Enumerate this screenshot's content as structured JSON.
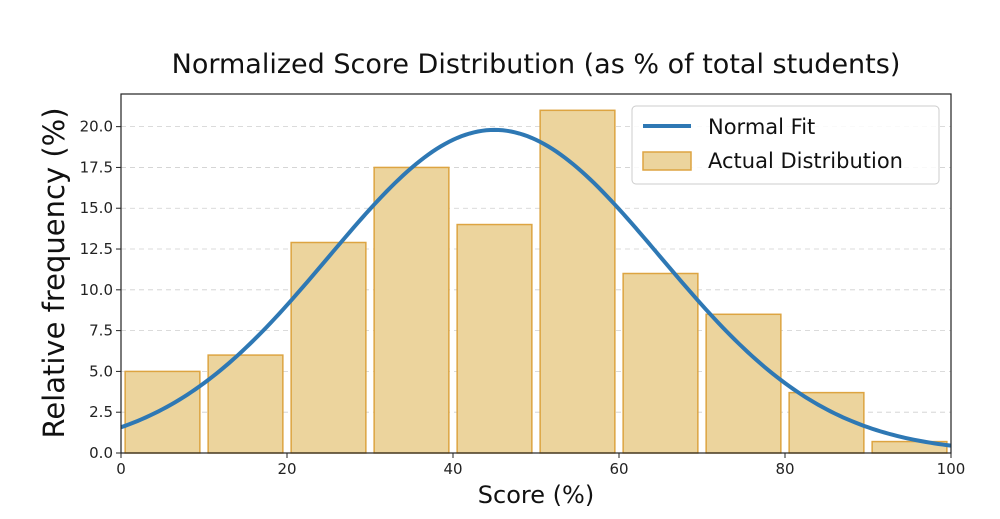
{
  "chart_data": {
    "type": "bar",
    "title": "Normalized Score Distribution (as % of total students)",
    "xlabel": "Score (%)",
    "ylabel": "Relative frequency (%)",
    "xlim": [
      0,
      100
    ],
    "ylim": [
      0,
      22
    ],
    "xticks": [
      "0",
      "20",
      "40",
      "60",
      "80",
      "100"
    ],
    "yticks": [
      "0.0",
      "2.5",
      "5.0",
      "7.5",
      "10.0",
      "12.5",
      "15.0",
      "17.5",
      "20.0"
    ],
    "grid": "y-dashed",
    "legend_position": "top-right",
    "bins": [
      {
        "start": 0,
        "end": 10,
        "value": 5.0
      },
      {
        "start": 10,
        "end": 20,
        "value": 6.0
      },
      {
        "start": 20,
        "end": 30,
        "value": 12.9
      },
      {
        "start": 30,
        "end": 40,
        "value": 17.5
      },
      {
        "start": 40,
        "end": 50,
        "value": 14.0
      },
      {
        "start": 50,
        "end": 60,
        "value": 21.0
      },
      {
        "start": 60,
        "end": 70,
        "value": 11.0
      },
      {
        "start": 70,
        "end": 80,
        "value": 8.5
      },
      {
        "start": 80,
        "end": 90,
        "value": 3.7
      },
      {
        "start": 90,
        "end": 100,
        "value": 0.7
      }
    ],
    "series": [
      {
        "name": "Actual Distribution",
        "kind": "bar",
        "color": "#ecd49d",
        "edge_color": "#dda441"
      },
      {
        "name": "Normal Fit",
        "kind": "line",
        "color": "#2e78b4",
        "mean": 45.0,
        "std": 20.0,
        "peak": 19.8
      }
    ]
  }
}
